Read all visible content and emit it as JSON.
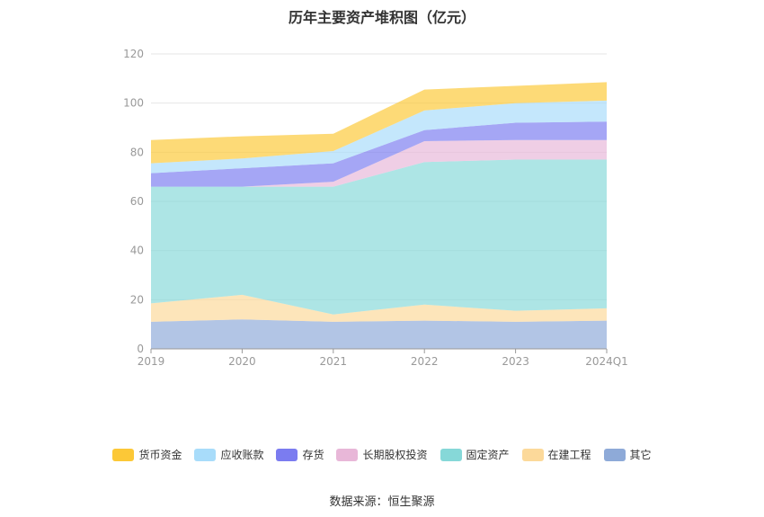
{
  "chart_data": {
    "type": "area",
    "stacked": true,
    "title": "历年主要资产堆积图（亿元）",
    "categories": [
      "2019",
      "2020",
      "2021",
      "2022",
      "2023",
      "2024Q1"
    ],
    "ylim": [
      0,
      120
    ],
    "yticks": [
      0,
      20,
      40,
      60,
      80,
      100,
      120
    ],
    "grid": true,
    "legend_position": "bottom",
    "series": [
      {
        "name": "其它",
        "color": "#8eaad8",
        "values": [
          11,
          12,
          11,
          11.5,
          11,
          11.5
        ]
      },
      {
        "name": "在建工程",
        "color": "#fcd99a",
        "values": [
          7.5,
          10,
          3,
          6.5,
          4.5,
          5
        ]
      },
      {
        "name": "固定资产",
        "color": "#86d8d8",
        "values": [
          47.5,
          44,
          52,
          58,
          61.5,
          60.5
        ]
      },
      {
        "name": "长期股权投资",
        "color": "#e8b7d8",
        "values": [
          0,
          0,
          2,
          8.5,
          8,
          8
        ]
      },
      {
        "name": "存货",
        "color": "#7b7cf0",
        "values": [
          5.5,
          7.5,
          7.5,
          4.5,
          7,
          7.5
        ]
      },
      {
        "name": "应收账款",
        "color": "#a8dcfa",
        "values": [
          4,
          4,
          5,
          8,
          8,
          8.5
        ]
      },
      {
        "name": "货币资金",
        "color": "#fcc837",
        "values": [
          9.5,
          9,
          7,
          8.5,
          7,
          7.5
        ]
      }
    ]
  },
  "legend_order": [
    "货币资金",
    "应收账款",
    "存货",
    "长期股权投资",
    "固定资产",
    "在建工程",
    "其它"
  ],
  "source": "数据来源：恒生聚源"
}
